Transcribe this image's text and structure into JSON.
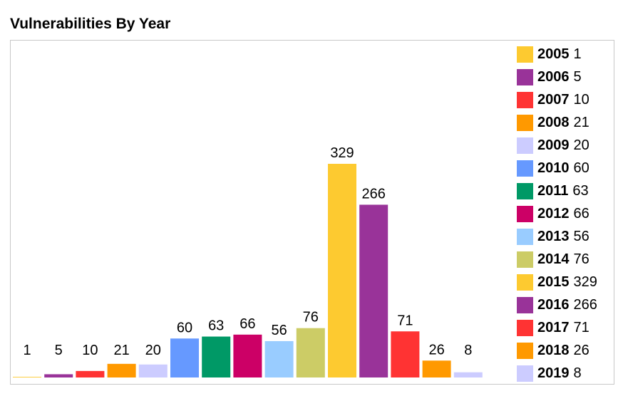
{
  "title": "Vulnerabilities By Year",
  "chart_data": {
    "type": "bar",
    "title": "Vulnerabilities By Year",
    "categories": [
      "2005",
      "2006",
      "2007",
      "2008",
      "2009",
      "2010",
      "2011",
      "2012",
      "2013",
      "2014",
      "2015",
      "2016",
      "2017",
      "2018",
      "2019"
    ],
    "values": [
      1,
      5,
      10,
      21,
      20,
      60,
      63,
      66,
      56,
      76,
      329,
      266,
      71,
      26,
      8
    ],
    "colors": [
      "#fdca30",
      "#993399",
      "#ff3333",
      "#ff9900",
      "#ccccff",
      "#6699ff",
      "#009966",
      "#cc0066",
      "#99ccff",
      "#cccc66",
      "#fdca30",
      "#993399",
      "#ff3333",
      "#ff9900",
      "#ccccff"
    ],
    "legend_position": "right",
    "data_labels": true,
    "grid": false
  }
}
